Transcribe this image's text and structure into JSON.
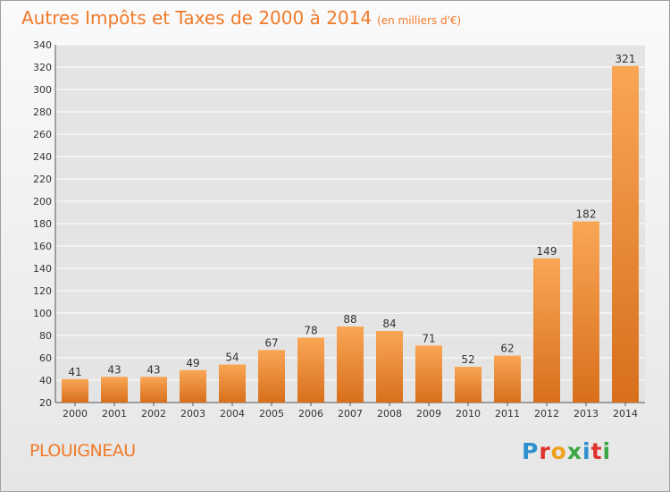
{
  "header": {
    "title": "Autres Impôts et Taxes de 2000 à 2014",
    "subtitle": "(en milliers d'€)"
  },
  "footer": {
    "commune": "PLOUIGNEAU",
    "logo": "Proxiti"
  },
  "colors": {
    "accent": "#f07a2a",
    "bar_light": "#f9a655",
    "bar_dark": "#d86f1c",
    "grid": "#ffffff",
    "text": "#333333"
  },
  "chart_data": {
    "type": "bar",
    "categories": [
      "2000",
      "2001",
      "2002",
      "2003",
      "2004",
      "2005",
      "2006",
      "2007",
      "2008",
      "2009",
      "2010",
      "2011",
      "2012",
      "2013",
      "2014"
    ],
    "values": [
      41,
      43,
      43,
      49,
      54,
      67,
      78,
      88,
      84,
      71,
      52,
      62,
      149,
      182,
      321
    ],
    "ylim": [
      20,
      340
    ],
    "yticks": [
      20,
      40,
      60,
      80,
      100,
      120,
      140,
      160,
      180,
      200,
      220,
      240,
      260,
      280,
      300,
      320,
      340
    ],
    "grid": true,
    "xlabel": "",
    "ylabel": ""
  }
}
